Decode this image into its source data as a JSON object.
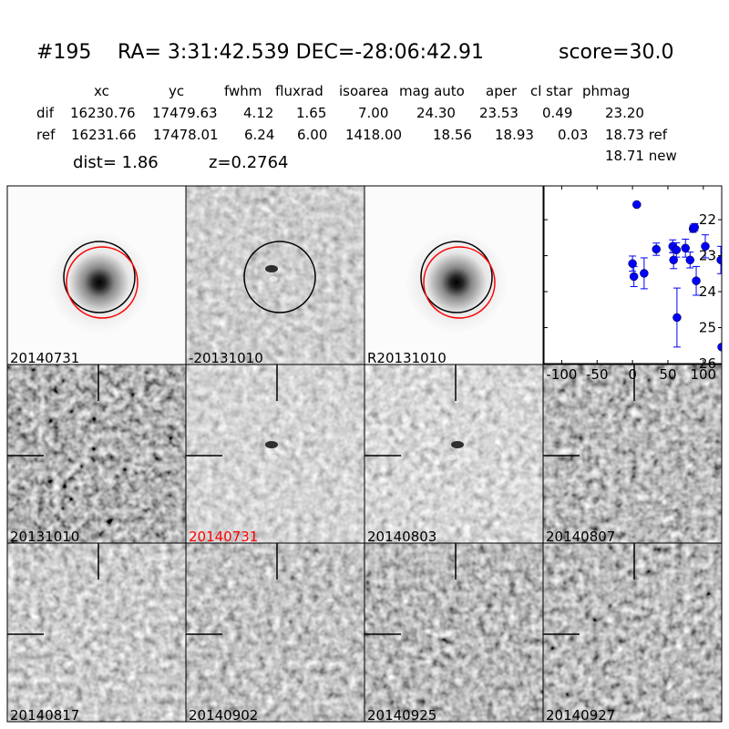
{
  "header": {
    "id": "#195",
    "coords": "RA= 3:31:42.539 DEC=-28:06:42.91",
    "score": "score=30.0"
  },
  "table": {
    "columns": [
      "xc",
      "yc",
      "fwhm",
      "fluxrad",
      "isoarea",
      "mag auto",
      "aper",
      "cl star",
      "phmag"
    ],
    "rows": [
      {
        "label": "dif",
        "values": [
          "16230.76",
          "17479.63",
          "4.12",
          "1.65",
          "7.00",
          "24.30",
          "23.53",
          "0.49",
          "23.20"
        ]
      },
      {
        "label": "ref",
        "values": [
          "16231.66",
          "17478.01",
          "6.24",
          "6.00",
          "1418.00",
          "18.56",
          "18.93",
          "0.03",
          "18.73 ref"
        ]
      }
    ],
    "phmag_new": "18.71 new",
    "dist": "dist=  1.86",
    "z": "z=0.2764"
  },
  "stamps": [
    {
      "label": "20140731",
      "label_color": "#000000"
    },
    {
      "label": "-20131010",
      "label_color": "#000000"
    },
    {
      "label": "R20131010",
      "label_color": "#000000"
    },
    {
      "label": "20131010",
      "label_color": "#000000"
    },
    {
      "label": "20140731",
      "label_color": "#ff0000"
    },
    {
      "label": "20140803",
      "label_color": "#000000"
    },
    {
      "label": "20140807",
      "label_color": "#000000"
    },
    {
      "label": "20140817",
      "label_color": "#000000"
    },
    {
      "label": "20140902",
      "label_color": "#000000"
    },
    {
      "label": "20140925",
      "label_color": "#000000"
    },
    {
      "label": "20140927",
      "label_color": "#000000"
    }
  ],
  "chart_data": {
    "type": "scatter",
    "error_bars": true,
    "color": "#0000ff",
    "xlim": [
      -125,
      126
    ],
    "ylim": [
      26,
      21.06
    ],
    "y_inverted": true,
    "xticks": [
      "-100",
      "-50",
      "0",
      "50",
      "100"
    ],
    "yticks": [
      "22",
      "23",
      "24",
      "25",
      "26"
    ],
    "points": [
      {
        "x": 0,
        "y": 23.22,
        "err": 0.21
      },
      {
        "x": 2,
        "y": 23.58,
        "err": 0.28
      },
      {
        "x": 6,
        "y": 21.58,
        "err": 0.05
      },
      {
        "x": 16.4,
        "y": 23.49,
        "err": 0.43
      },
      {
        "x": 33.6,
        "y": 22.82,
        "err": 0.17
      },
      {
        "x": 56.8,
        "y": 22.74,
        "err": 0.18
      },
      {
        "x": 58,
        "y": 23.12,
        "err": 0.24
      },
      {
        "x": 62,
        "y": 22.84,
        "err": 0.2
      },
      {
        "x": 62.8,
        "y": 24.72,
        "err": 0.82
      },
      {
        "x": 74.8,
        "y": 22.79,
        "err": 0.25
      },
      {
        "x": 81.3,
        "y": 23.12,
        "err": 0.22
      },
      {
        "x": 85.6,
        "y": 22.25,
        "err": 0.1
      },
      {
        "x": 87.7,
        "y": 22.21,
        "err": 0.1
      },
      {
        "x": 90,
        "y": 23.7,
        "err": 0.4
      },
      {
        "x": 102.8,
        "y": 22.74,
        "err": 0.32
      },
      {
        "x": 124.8,
        "y": 23.12,
        "err": 0.38
      },
      {
        "x": 126,
        "y": 25.54,
        "err": 0
      }
    ]
  }
}
